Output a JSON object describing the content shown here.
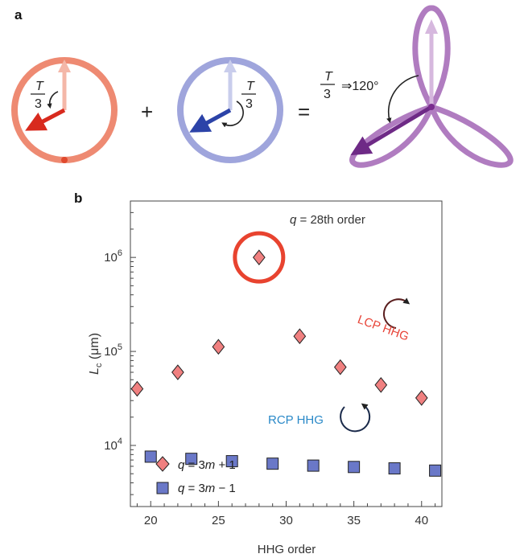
{
  "panel_a": {
    "letter": "a",
    "plus_sign": "+",
    "equals_sign": "=",
    "left_fraction": {
      "num": "T",
      "den": "3"
    },
    "middle_fraction": {
      "num": "T",
      "den": "3"
    },
    "right_fraction": {
      "num": "T",
      "den": "3",
      "suffix": "⇒120°"
    },
    "colors": {
      "lcp": "#ee8a72",
      "rcp": "#9fa5dc",
      "trefoil": "#b07cc0",
      "red_arrow": "#d82a1e",
      "blue_arrow": "#2c43a8",
      "purple_arrow": "#6e2a86"
    }
  },
  "panel_b": {
    "letter": "b",
    "highlight_label": "q = 28th order",
    "lcp_label": "LCP HHG",
    "rcp_label": "RCP HHG",
    "lcp_color": "#e8463a",
    "rcp_color": "#2a89c8"
  },
  "chart_data": {
    "type": "scatter",
    "xlabel": "HHG order",
    "ylabel": "L_c (μm)",
    "xlim": [
      18.5,
      41.5
    ],
    "ylim_log10": [
      3.35,
      6.6
    ],
    "yscale": "log",
    "xticks": [
      20,
      25,
      30,
      35,
      40
    ],
    "yticks": [
      {
        "value": 10000,
        "base": "10",
        "exp": "4"
      },
      {
        "value": 100000,
        "base": "10",
        "exp": "5"
      },
      {
        "value": 1000000,
        "base": "10",
        "exp": "6"
      }
    ],
    "legend_position": "bottom-left",
    "series": [
      {
        "name": "q = 3m + 1",
        "marker": "diamond",
        "color": "#f08080",
        "x": [
          19,
          22,
          25,
          28,
          31,
          34,
          37,
          40
        ],
        "y": [
          40000,
          60000,
          112000,
          1000000,
          145000,
          68000,
          44000,
          32000
        ]
      },
      {
        "name": "q = 3m − 1",
        "marker": "square",
        "color": "#6a78c8",
        "x": [
          20,
          23,
          26,
          29,
          32,
          35,
          38,
          41
        ],
        "y": [
          7600,
          7200,
          6800,
          6400,
          6100,
          5900,
          5700,
          5400
        ]
      }
    ]
  }
}
